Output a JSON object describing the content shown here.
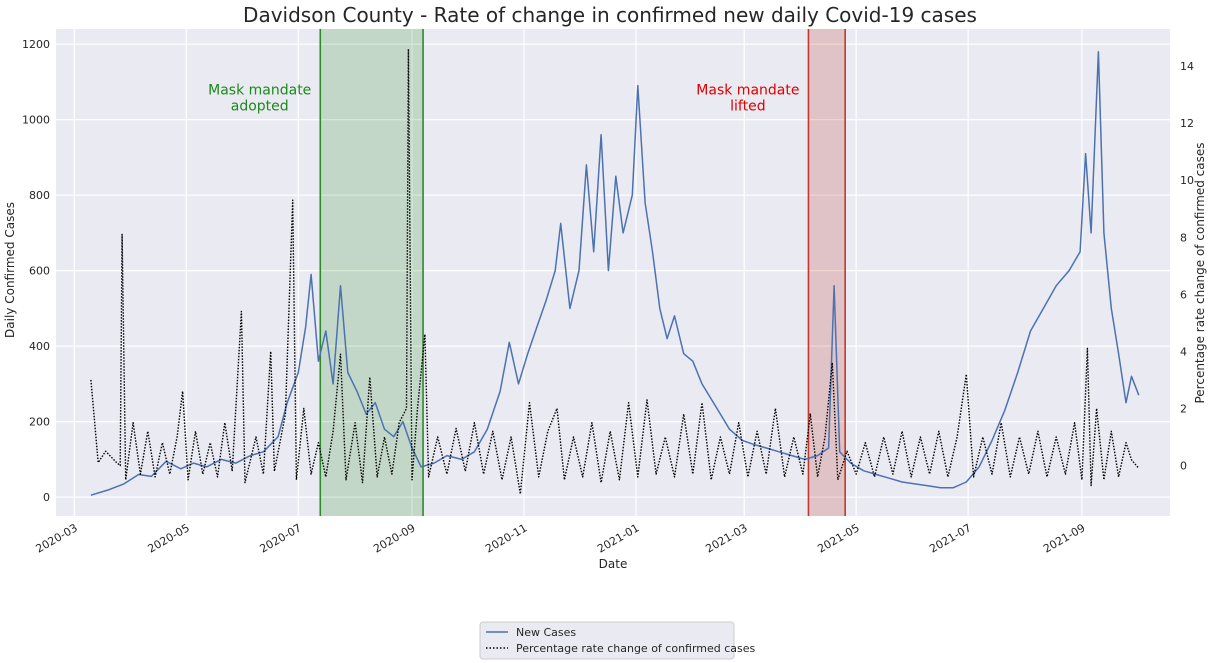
{
  "chart_data": {
    "type": "line",
    "title": "Davidson County - Rate of change in confirmed new daily Covid-19 cases",
    "xlabel": "Date",
    "ylabel_left": "Daily Confirmed Cases",
    "ylabel_right": "Percentage rate change of confirmed cases",
    "x_range": [
      "2020-02-20",
      "2021-10-19"
    ],
    "ylim_left": [
      -50,
      1240
    ],
    "ylim_right": [
      -1.77,
      15.3
    ],
    "x_ticks": [
      "2020-03",
      "2020-05",
      "2020-07",
      "2020-09",
      "2020-11",
      "2021-01",
      "2021-03",
      "2021-05",
      "2021-07",
      "2021-09"
    ],
    "y_ticks_left": [
      0,
      200,
      400,
      600,
      800,
      1000,
      1200
    ],
    "y_ticks_right": [
      0,
      2,
      4,
      6,
      8,
      10,
      12,
      14
    ],
    "grid": true,
    "legend_position": "bottom-center",
    "colors": {
      "background": "#eaeaf2",
      "new_cases": "#4c72b0",
      "rate": "#000000",
      "mask_adopted": "#2a8a2a",
      "mask_lifted": "#c0392b",
      "left_label_color": "#1f1fcc"
    },
    "shaded_regions": [
      {
        "label": "Mask mandate\nadopted",
        "start": "2020-07-13",
        "end": "2020-09-07",
        "color": "green"
      },
      {
        "label": "Mask mandate\nlifted",
        "start": "2021-04-05",
        "end": "2021-04-25",
        "color": "red"
      }
    ],
    "annotations": [
      {
        "lines": [
          "Mask mandate",
          "adopted"
        ],
        "anchor_date": "2020-06-10",
        "y_left": 1030,
        "color": "green"
      },
      {
        "lines": [
          "Mask mandate",
          "lifted"
        ],
        "anchor_date": "2021-03-03",
        "y_left": 1030,
        "color": "red"
      }
    ],
    "series": [
      {
        "name": "New Cases",
        "axis": "left",
        "style": "solid",
        "points": [
          [
            "2020-03-10",
            5
          ],
          [
            "2020-03-20",
            20
          ],
          [
            "2020-03-28",
            35
          ],
          [
            "2020-04-05",
            60
          ],
          [
            "2020-04-12",
            55
          ],
          [
            "2020-04-20",
            95
          ],
          [
            "2020-04-28",
            75
          ],
          [
            "2020-05-05",
            90
          ],
          [
            "2020-05-12",
            80
          ],
          [
            "2020-05-20",
            100
          ],
          [
            "2020-05-28",
            90
          ],
          [
            "2020-06-05",
            110
          ],
          [
            "2020-06-12",
            120
          ],
          [
            "2020-06-20",
            160
          ],
          [
            "2020-06-25",
            250
          ],
          [
            "2020-07-01",
            330
          ],
          [
            "2020-07-05",
            450
          ],
          [
            "2020-07-08",
            590
          ],
          [
            "2020-07-12",
            360
          ],
          [
            "2020-07-16",
            440
          ],
          [
            "2020-07-20",
            300
          ],
          [
            "2020-07-24",
            560
          ],
          [
            "2020-07-28",
            330
          ],
          [
            "2020-08-02",
            280
          ],
          [
            "2020-08-07",
            220
          ],
          [
            "2020-08-12",
            250
          ],
          [
            "2020-08-17",
            180
          ],
          [
            "2020-08-22",
            160
          ],
          [
            "2020-08-27",
            200
          ],
          [
            "2020-09-01",
            130
          ],
          [
            "2020-09-06",
            80
          ],
          [
            "2020-09-13",
            90
          ],
          [
            "2020-09-20",
            110
          ],
          [
            "2020-09-28",
            100
          ],
          [
            "2020-10-05",
            120
          ],
          [
            "2020-10-12",
            180
          ],
          [
            "2020-10-19",
            280
          ],
          [
            "2020-10-24",
            410
          ],
          [
            "2020-10-29",
            300
          ],
          [
            "2020-11-03",
            380
          ],
          [
            "2020-11-08",
            450
          ],
          [
            "2020-11-13",
            520
          ],
          [
            "2020-11-18",
            600
          ],
          [
            "2020-11-21",
            725
          ],
          [
            "2020-11-26",
            500
          ],
          [
            "2020-12-01",
            600
          ],
          [
            "2020-12-05",
            880
          ],
          [
            "2020-12-09",
            650
          ],
          [
            "2020-12-13",
            960
          ],
          [
            "2020-12-17",
            600
          ],
          [
            "2020-12-21",
            850
          ],
          [
            "2020-12-25",
            700
          ],
          [
            "2020-12-30",
            800
          ],
          [
            "2021-01-02",
            1090
          ],
          [
            "2021-01-06",
            780
          ],
          [
            "2021-01-10",
            650
          ],
          [
            "2021-01-14",
            500
          ],
          [
            "2021-01-18",
            420
          ],
          [
            "2021-01-22",
            480
          ],
          [
            "2021-01-27",
            380
          ],
          [
            "2021-02-01",
            360
          ],
          [
            "2021-02-06",
            300
          ],
          [
            "2021-02-11",
            260
          ],
          [
            "2021-02-16",
            220
          ],
          [
            "2021-02-21",
            180
          ],
          [
            "2021-02-28",
            150
          ],
          [
            "2021-03-06",
            140
          ],
          [
            "2021-03-13",
            130
          ],
          [
            "2021-03-20",
            120
          ],
          [
            "2021-03-27",
            110
          ],
          [
            "2021-04-03",
            100
          ],
          [
            "2021-04-10",
            110
          ],
          [
            "2021-04-16",
            130
          ],
          [
            "2021-04-19",
            560
          ],
          [
            "2021-04-22",
            120
          ],
          [
            "2021-04-28",
            90
          ],
          [
            "2021-05-05",
            70
          ],
          [
            "2021-05-12",
            60
          ],
          [
            "2021-05-19",
            50
          ],
          [
            "2021-05-26",
            40
          ],
          [
            "2021-06-02",
            35
          ],
          [
            "2021-06-09",
            30
          ],
          [
            "2021-06-16",
            25
          ],
          [
            "2021-06-23",
            25
          ],
          [
            "2021-06-30",
            40
          ],
          [
            "2021-07-07",
            80
          ],
          [
            "2021-07-14",
            150
          ],
          [
            "2021-07-21",
            230
          ],
          [
            "2021-07-28",
            330
          ],
          [
            "2021-08-04",
            440
          ],
          [
            "2021-08-11",
            500
          ],
          [
            "2021-08-18",
            560
          ],
          [
            "2021-08-25",
            600
          ],
          [
            "2021-08-31",
            650
          ],
          [
            "2021-09-03",
            910
          ],
          [
            "2021-09-06",
            700
          ],
          [
            "2021-09-10",
            1180
          ],
          [
            "2021-09-13",
            700
          ],
          [
            "2021-09-17",
            500
          ],
          [
            "2021-09-21",
            380
          ],
          [
            "2021-09-25",
            250
          ],
          [
            "2021-09-28",
            320
          ],
          [
            "2021-10-02",
            270
          ]
        ]
      },
      {
        "name": "Percentage rate change of confirmed cases",
        "axis": "right",
        "style": "dotted",
        "points": [
          [
            "2020-03-10",
            3.0
          ],
          [
            "2020-03-14",
            0.1
          ],
          [
            "2020-03-18",
            0.5
          ],
          [
            "2020-03-24",
            0.1
          ],
          [
            "2020-03-26",
            0.0
          ],
          [
            "2020-03-27",
            8.1
          ],
          [
            "2020-03-29",
            -0.5
          ],
          [
            "2020-04-02",
            1.5
          ],
          [
            "2020-04-06",
            -0.3
          ],
          [
            "2020-04-10",
            1.2
          ],
          [
            "2020-04-14",
            -0.4
          ],
          [
            "2020-04-18",
            0.8
          ],
          [
            "2020-04-22",
            -0.3
          ],
          [
            "2020-04-26",
            1.0
          ],
          [
            "2020-04-29",
            2.6
          ],
          [
            "2020-05-02",
            -0.5
          ],
          [
            "2020-05-06",
            1.2
          ],
          [
            "2020-05-10",
            -0.3
          ],
          [
            "2020-05-14",
            0.8
          ],
          [
            "2020-05-18",
            -0.4
          ],
          [
            "2020-05-22",
            1.5
          ],
          [
            "2020-05-26",
            -0.2
          ],
          [
            "2020-05-31",
            5.4
          ],
          [
            "2020-06-02",
            -0.6
          ],
          [
            "2020-06-08",
            1.0
          ],
          [
            "2020-06-12",
            -0.3
          ],
          [
            "2020-06-16",
            4.0
          ],
          [
            "2020-06-18",
            -0.2
          ],
          [
            "2020-06-24",
            1.8
          ],
          [
            "2020-06-28",
            9.3
          ],
          [
            "2020-06-30",
            -0.5
          ],
          [
            "2020-07-04",
            2.0
          ],
          [
            "2020-07-08",
            -0.3
          ],
          [
            "2020-07-12",
            0.8
          ],
          [
            "2020-07-16",
            -0.4
          ],
          [
            "2020-07-20",
            1.2
          ],
          [
            "2020-07-24",
            3.9
          ],
          [
            "2020-07-27",
            -0.5
          ],
          [
            "2020-08-01",
            1.5
          ],
          [
            "2020-08-05",
            -0.6
          ],
          [
            "2020-08-09",
            3.1
          ],
          [
            "2020-08-13",
            -0.4
          ],
          [
            "2020-08-17",
            1.0
          ],
          [
            "2020-08-21",
            -0.3
          ],
          [
            "2020-08-25",
            1.5
          ],
          [
            "2020-08-29",
            2.0
          ],
          [
            "2020-08-30",
            14.6
          ],
          [
            "2020-09-01",
            -0.5
          ],
          [
            "2020-09-04",
            2.0
          ],
          [
            "2020-09-08",
            4.6
          ],
          [
            "2020-09-10",
            -0.4
          ],
          [
            "2020-09-15",
            1.0
          ],
          [
            "2020-09-20",
            -0.3
          ],
          [
            "2020-09-25",
            1.3
          ],
          [
            "2020-09-30",
            -0.2
          ],
          [
            "2020-10-05",
            1.5
          ],
          [
            "2020-10-10",
            -0.3
          ],
          [
            "2020-10-15",
            1.2
          ],
          [
            "2020-10-20",
            -0.5
          ],
          [
            "2020-10-25",
            1.0
          ],
          [
            "2020-10-30",
            -1.0
          ],
          [
            "2020-11-04",
            2.2
          ],
          [
            "2020-11-09",
            -0.4
          ],
          [
            "2020-11-14",
            1.2
          ],
          [
            "2020-11-19",
            2.0
          ],
          [
            "2020-11-23",
            -0.5
          ],
          [
            "2020-11-28",
            1.0
          ],
          [
            "2020-12-03",
            -0.4
          ],
          [
            "2020-12-08",
            1.5
          ],
          [
            "2020-12-13",
            -0.6
          ],
          [
            "2020-12-18",
            1.2
          ],
          [
            "2020-12-23",
            -0.5
          ],
          [
            "2020-12-28",
            2.2
          ],
          [
            "2021-01-02",
            -0.4
          ],
          [
            "2021-01-07",
            2.3
          ],
          [
            "2021-01-12",
            -0.3
          ],
          [
            "2021-01-17",
            1.0
          ],
          [
            "2021-01-22",
            -0.4
          ],
          [
            "2021-01-27",
            1.8
          ],
          [
            "2021-02-01",
            -0.3
          ],
          [
            "2021-02-06",
            2.2
          ],
          [
            "2021-02-11",
            -0.5
          ],
          [
            "2021-02-16",
            1.0
          ],
          [
            "2021-02-21",
            -0.3
          ],
          [
            "2021-02-26",
            1.5
          ],
          [
            "2021-03-03",
            -0.4
          ],
          [
            "2021-03-08",
            1.2
          ],
          [
            "2021-03-13",
            -0.3
          ],
          [
            "2021-03-18",
            2.0
          ],
          [
            "2021-03-23",
            -0.4
          ],
          [
            "2021-03-28",
            1.0
          ],
          [
            "2021-04-02",
            -0.3
          ],
          [
            "2021-04-06",
            1.8
          ],
          [
            "2021-04-10",
            -0.4
          ],
          [
            "2021-04-14",
            1.0
          ],
          [
            "2021-04-18",
            3.6
          ],
          [
            "2021-04-21",
            -0.5
          ],
          [
            "2021-04-26",
            0.5
          ],
          [
            "2021-05-01",
            -0.3
          ],
          [
            "2021-05-06",
            0.8
          ],
          [
            "2021-05-11",
            -0.4
          ],
          [
            "2021-05-16",
            1.0
          ],
          [
            "2021-05-21",
            -0.3
          ],
          [
            "2021-05-26",
            1.2
          ],
          [
            "2021-05-31",
            -0.4
          ],
          [
            "2021-06-05",
            1.0
          ],
          [
            "2021-06-10",
            -0.3
          ],
          [
            "2021-06-15",
            1.2
          ],
          [
            "2021-06-20",
            -0.4
          ],
          [
            "2021-06-25",
            1.0
          ],
          [
            "2021-06-30",
            3.2
          ],
          [
            "2021-07-04",
            -0.4
          ],
          [
            "2021-07-09",
            1.0
          ],
          [
            "2021-07-14",
            -0.3
          ],
          [
            "2021-07-19",
            1.5
          ],
          [
            "2021-07-24",
            -0.4
          ],
          [
            "2021-07-29",
            1.0
          ],
          [
            "2021-08-03",
            -0.3
          ],
          [
            "2021-08-08",
            1.2
          ],
          [
            "2021-08-13",
            -0.4
          ],
          [
            "2021-08-18",
            1.0
          ],
          [
            "2021-08-23",
            -0.3
          ],
          [
            "2021-08-28",
            1.5
          ],
          [
            "2021-09-01",
            -0.5
          ],
          [
            "2021-09-04",
            4.1
          ],
          [
            "2021-09-06",
            -0.7
          ],
          [
            "2021-09-09",
            2.0
          ],
          [
            "2021-09-13",
            -0.5
          ],
          [
            "2021-09-17",
            1.2
          ],
          [
            "2021-09-21",
            -0.4
          ],
          [
            "2021-09-25",
            0.8
          ],
          [
            "2021-09-28",
            0.2
          ],
          [
            "2021-10-02",
            -0.1
          ]
        ]
      }
    ]
  }
}
